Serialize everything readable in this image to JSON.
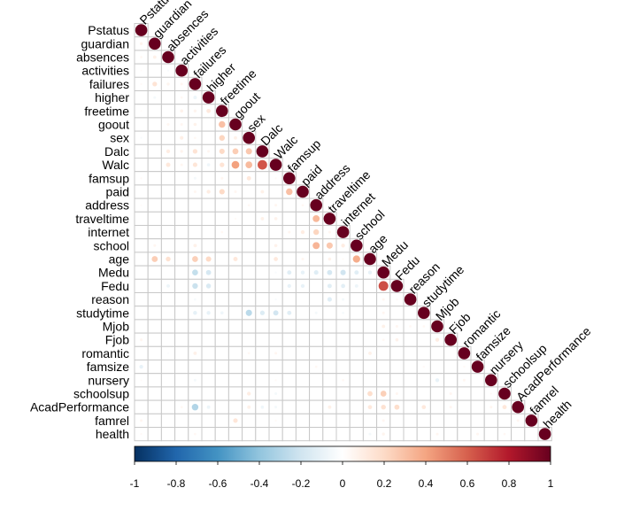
{
  "chart_data": {
    "type": "heatmap",
    "variables": [
      "Pstatus",
      "guardian",
      "absences",
      "activities",
      "failures",
      "higher",
      "freetime",
      "goout",
      "sex",
      "Dalc",
      "Walc",
      "famsup",
      "paid",
      "address",
      "traveltime",
      "internet",
      "school",
      "age",
      "Medu",
      "Fedu",
      "reason",
      "studytime",
      "Mjob",
      "Fjob",
      "romantic",
      "famsize",
      "nursery",
      "schoolsup",
      "AcadPerformance",
      "famrel",
      "health"
    ],
    "colorbar": {
      "range": [
        -1,
        1
      ],
      "ticks": [
        "-1",
        "-0.8",
        "-0.6",
        "-0.4",
        "-0.2",
        "0",
        "0.2",
        "0.4",
        "0.6",
        "0.8",
        "1"
      ],
      "colors": [
        "#053061",
        "#2166ac",
        "#4393c3",
        "#92c5de",
        "#d1e5f0",
        "#ffffff",
        "#fddbc7",
        "#f4a582",
        "#d6604d",
        "#b2182b",
        "#67001f"
      ]
    },
    "correlations": [
      [
        "guardian",
        "Pstatus",
        0.06
      ],
      [
        "absences",
        "Pstatus",
        0.04
      ],
      [
        "absences",
        "guardian",
        0.08
      ],
      [
        "activities",
        "Pstatus",
        0.02
      ],
      [
        "activities",
        "absences",
        -0.03
      ],
      [
        "failures",
        "Pstatus",
        0.03
      ],
      [
        "failures",
        "guardian",
        0.15
      ],
      [
        "failures",
        "absences",
        0.06
      ],
      [
        "failures",
        "activities",
        0.05
      ],
      [
        "higher",
        "guardian",
        -0.05
      ],
      [
        "higher",
        "failures",
        -0.08
      ],
      [
        "higher",
        "activities",
        0.04
      ],
      [
        "higher",
        "failures",
        -0.08
      ],
      [
        "freetime",
        "Pstatus",
        0.02
      ],
      [
        "freetime",
        "failures",
        0.06
      ],
      [
        "freetime",
        "activities",
        0.07
      ],
      [
        "freetime",
        "higher",
        0.12
      ],
      [
        "goout",
        "failures",
        0.07
      ],
      [
        "goout",
        "activities",
        0.05
      ],
      [
        "goout",
        "freetime",
        0.3
      ],
      [
        "goout",
        "absences",
        0.05
      ],
      [
        "sex",
        "failures",
        0.04
      ],
      [
        "sex",
        "activities",
        0.09
      ],
      [
        "sex",
        "freetime",
        0.22
      ],
      [
        "sex",
        "goout",
        0.08
      ],
      [
        "sex",
        "Pstatus",
        -0.03
      ],
      [
        "Dalc",
        "absences",
        0.1
      ],
      [
        "Dalc",
        "activities",
        0.06
      ],
      [
        "Dalc",
        "failures",
        0.15
      ],
      [
        "Dalc",
        "freetime",
        0.2
      ],
      [
        "Dalc",
        "goout",
        0.25
      ],
      [
        "Dalc",
        "sex",
        0.27
      ],
      [
        "Dalc",
        "higher",
        0.05
      ],
      [
        "Walc",
        "absences",
        0.13
      ],
      [
        "Walc",
        "failures",
        0.14
      ],
      [
        "Walc",
        "higher",
        -0.07
      ],
      [
        "Walc",
        "freetime",
        0.15
      ],
      [
        "Walc",
        "goout",
        0.41
      ],
      [
        "Walc",
        "sex",
        0.32
      ],
      [
        "Walc",
        "Dalc",
        0.63
      ],
      [
        "Walc",
        "activities",
        0.05
      ],
      [
        "famsup",
        "Pstatus",
        0.03
      ],
      [
        "famsup",
        "failures",
        -0.05
      ],
      [
        "famsup",
        "freetime",
        0.05
      ],
      [
        "famsup",
        "sex",
        0.13
      ],
      [
        "famsup",
        "Walc",
        0.03
      ],
      [
        "paid",
        "failures",
        0.05
      ],
      [
        "paid",
        "higher",
        0.1
      ],
      [
        "paid",
        "freetime",
        0.2
      ],
      [
        "paid",
        "goout",
        0.05
      ],
      [
        "paid",
        "Dalc",
        0.08
      ],
      [
        "paid",
        "famsup",
        0.3
      ],
      [
        "address",
        "Pstatus",
        0.02
      ],
      [
        "address",
        "sex",
        0.04
      ],
      [
        "address",
        "Walc",
        0.05
      ],
      [
        "address",
        "paid",
        0.04
      ],
      [
        "traveltime",
        "goout",
        0.03
      ],
      [
        "traveltime",
        "Dalc",
        0.08
      ],
      [
        "traveltime",
        "Walc",
        0.07
      ],
      [
        "traveltime",
        "address",
        0.33
      ],
      [
        "internet",
        "freetime",
        0.04
      ],
      [
        "internet",
        "famsup",
        0.05
      ],
      [
        "internet",
        "paid",
        0.1
      ],
      [
        "internet",
        "address",
        0.22
      ],
      [
        "internet",
        "traveltime",
        0.05
      ],
      [
        "school",
        "guardian",
        0.05
      ],
      [
        "school",
        "failures",
        0.08
      ],
      [
        "school",
        "Walc",
        0.07
      ],
      [
        "school",
        "address",
        0.34
      ],
      [
        "school",
        "traveltime",
        0.27
      ],
      [
        "school",
        "internet",
        0.1
      ],
      [
        "age",
        "guardian",
        0.25
      ],
      [
        "age",
        "absences",
        0.16
      ],
      [
        "age",
        "failures",
        0.24
      ],
      [
        "age",
        "higher",
        0.2
      ],
      [
        "age",
        "goout",
        0.13
      ],
      [
        "age",
        "Walc",
        0.12
      ],
      [
        "age",
        "paid",
        0.05
      ],
      [
        "age",
        "traveltime",
        0.07
      ],
      [
        "age",
        "internet",
        0.03
      ],
      [
        "age",
        "school",
        0.37
      ],
      [
        "Medu",
        "failures",
        -0.24
      ],
      [
        "Medu",
        "higher",
        -0.18
      ],
      [
        "Medu",
        "Walc",
        -0.03
      ],
      [
        "Medu",
        "famsup",
        -0.13
      ],
      [
        "Medu",
        "paid",
        -0.1
      ],
      [
        "Medu",
        "address",
        -0.14
      ],
      [
        "Medu",
        "traveltime",
        -0.18
      ],
      [
        "Medu",
        "internet",
        -0.2
      ],
      [
        "Medu",
        "school",
        -0.13
      ],
      [
        "Medu",
        "age",
        -0.1
      ],
      [
        "Fedu",
        "absences",
        -0.08
      ],
      [
        "Fedu",
        "failures",
        -0.22
      ],
      [
        "Fedu",
        "higher",
        -0.16
      ],
      [
        "Fedu",
        "famsup",
        -0.1
      ],
      [
        "Fedu",
        "paid",
        -0.1
      ],
      [
        "Fedu",
        "traveltime",
        -0.13
      ],
      [
        "Fedu",
        "internet",
        -0.12
      ],
      [
        "Fedu",
        "school",
        -0.08
      ],
      [
        "Fedu",
        "Medu",
        0.65
      ],
      [
        "reason",
        "failures",
        -0.04
      ],
      [
        "reason",
        "Walc",
        -0.03
      ],
      [
        "reason",
        "traveltime",
        -0.14
      ],
      [
        "reason",
        "internet",
        -0.05
      ],
      [
        "reason",
        "Medu",
        0.05
      ],
      [
        "reason",
        "Fedu",
        0.03
      ],
      [
        "studytime",
        "failures",
        -0.11
      ],
      [
        "studytime",
        "higher",
        -0.1
      ],
      [
        "studytime",
        "freetime",
        -0.07
      ],
      [
        "studytime",
        "sex",
        -0.27
      ],
      [
        "studytime",
        "Dalc",
        -0.15
      ],
      [
        "studytime",
        "Walc",
        -0.19
      ],
      [
        "studytime",
        "address",
        -0.05
      ],
      [
        "studytime",
        "internet",
        -0.04
      ],
      [
        "studytime",
        "famsup",
        -0.13
      ],
      [
        "studytime",
        "Medu",
        0.05
      ],
      [
        "Mjob",
        "Medu",
        0.08
      ],
      [
        "Mjob",
        "Fedu",
        0.05
      ],
      [
        "Mjob",
        "reason",
        0.04
      ],
      [
        "Mjob",
        "studytime",
        0.04
      ],
      [
        "Fjob",
        "Pstatus",
        0.05
      ],
      [
        "Fjob",
        "Medu",
        0.04
      ],
      [
        "Fjob",
        "Fedu",
        0.07
      ],
      [
        "Fjob",
        "Mjob",
        0.1
      ],
      [
        "romantic",
        "failures",
        0.08
      ],
      [
        "romantic",
        "absences",
        -0.02
      ],
      [
        "romantic",
        "sex",
        0.04
      ],
      [
        "romantic",
        "Walc",
        0.05
      ],
      [
        "romantic",
        "age",
        0.08
      ],
      [
        "famsize",
        "Pstatus",
        -0.1
      ],
      [
        "famsize",
        "address",
        0.04
      ],
      [
        "famsize",
        "studytime",
        0.03
      ],
      [
        "famsize",
        "romantic",
        0.03
      ],
      [
        "nursery",
        "Pstatus",
        0.02
      ],
      [
        "nursery",
        "failures",
        -0.05
      ],
      [
        "nursery",
        "Walc",
        0.03
      ],
      [
        "nursery",
        "internet",
        0.04
      ],
      [
        "nursery",
        "Mjob",
        -0.1
      ],
      [
        "nursery",
        "romantic",
        0.05
      ],
      [
        "schoolsup",
        "sex",
        0.1
      ],
      [
        "schoolsup",
        "Walc",
        -0.05
      ],
      [
        "schoolsup",
        "age",
        0.18
      ],
      [
        "schoolsup",
        "Medu",
        0.24
      ],
      [
        "schoolsup",
        "Fedu",
        0.05
      ],
      [
        "schoolsup",
        "Fjob",
        0.05
      ],
      [
        "schoolsup",
        "nursery",
        0.03
      ],
      [
        "AcadPerformance",
        "failures",
        -0.3
      ],
      [
        "AcadPerformance",
        "higher",
        -0.08
      ],
      [
        "AcadPerformance",
        "activities",
        0.04
      ],
      [
        "AcadPerformance",
        "sex",
        0.08
      ],
      [
        "AcadPerformance",
        "Dalc",
        -0.07
      ],
      [
        "AcadPerformance",
        "Walc",
        -0.05
      ],
      [
        "AcadPerformance",
        "traveltime",
        0.08
      ],
      [
        "AcadPerformance",
        "age",
        0.12
      ],
      [
        "AcadPerformance",
        "Medu",
        0.16
      ],
      [
        "AcadPerformance",
        "Fedu",
        0.18
      ],
      [
        "AcadPerformance",
        "studytime",
        0.12
      ],
      [
        "AcadPerformance",
        "Fjob",
        0.05
      ],
      [
        "AcadPerformance",
        "nursery",
        0.05
      ],
      [
        "AcadPerformance",
        "schoolsup",
        0.13
      ],
      [
        "famrel",
        "Pstatus",
        0.05
      ],
      [
        "famrel",
        "goout",
        0.14
      ],
      [
        "famrel",
        "Medu",
        0.05
      ],
      [
        "famrel",
        "Walc",
        0.03
      ],
      [
        "famrel",
        "AcadPerformance",
        0.05
      ],
      [
        "health",
        "Pstatus",
        0.03
      ],
      [
        "health",
        "failures",
        0.04
      ],
      [
        "health",
        "age",
        -0.05
      ],
      [
        "health",
        "Medu",
        0.06
      ],
      [
        "health",
        "Mjob",
        0.05
      ],
      [
        "health",
        "famsize",
        0.05
      ],
      [
        "health",
        "schoolsup",
        0.04
      ]
    ],
    "diagonal": 1
  }
}
